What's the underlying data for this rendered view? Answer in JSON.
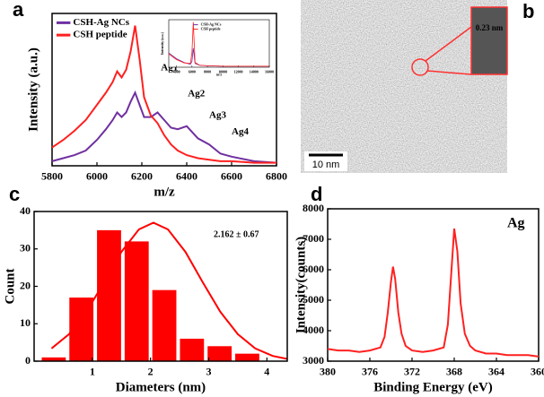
{
  "chart_data": [
    {
      "type": "line",
      "label": "a",
      "xlabel": "m/z",
      "ylabel": "Intensity (a.u.)",
      "x": [
        5800,
        5850,
        5900,
        5950,
        6000,
        6040,
        6070,
        6090,
        6110,
        6130,
        6150,
        6170,
        6190,
        6210,
        6240,
        6270,
        6300,
        6330,
        6360,
        6400,
        6450,
        6500,
        6550,
        6600,
        6700,
        6800
      ],
      "series": [
        {
          "name": "CSH-Ag NCs",
          "color": "#7030a0",
          "values": [
            3,
            5,
            7,
            10,
            17,
            24,
            30,
            35,
            32,
            35,
            42,
            48,
            40,
            32,
            32,
            35,
            30,
            25,
            24,
            26,
            18,
            14,
            8,
            6,
            3,
            2
          ]
        },
        {
          "name": "CSH peptide",
          "color": "#ff2020",
          "values": [
            12,
            17,
            23,
            30,
            40,
            48,
            55,
            62,
            58,
            63,
            75,
            92,
            70,
            45,
            33,
            28,
            20,
            14,
            10,
            7,
            5,
            4,
            3,
            3,
            2,
            2
          ]
        }
      ],
      "xlim": [
        5800,
        6800
      ],
      "xticks": [
        5800,
        6000,
        6200,
        6400,
        6600,
        6800
      ],
      "ylim": [
        0,
        100
      ],
      "annotations": [
        "Ag1",
        "Ag2",
        "Ag3",
        "Ag4"
      ],
      "inset": {
        "type": "line",
        "xlabel": "m/z",
        "ylabel": "Intensity (a.u.)",
        "x": [
          3000,
          4000,
          5000,
          5800,
          6000,
          6170,
          6400,
          7000,
          8000,
          10000,
          12000,
          14000,
          16000
        ],
        "series": [
          {
            "name": "CSH-Ag NCs",
            "color": "#7030a0",
            "values": [
              30,
              18,
              10,
              6,
              12,
              40,
              8,
              4,
              3,
              2,
              2,
              2,
              2
            ]
          },
          {
            "name": "CSH peptide",
            "color": "#ff2020",
            "values": [
              28,
              16,
              9,
              8,
              30,
              95,
              10,
              4,
              3,
              2,
              2,
              2,
              2
            ]
          }
        ],
        "xlim": [
          3000,
          16000
        ],
        "xticks": [
          4000,
          6000,
          8000,
          10000,
          12000,
          14000,
          16000
        ],
        "ylim": [
          0,
          100
        ]
      }
    },
    {
      "type": "image",
      "label": "b",
      "scale_bar": "10 nm",
      "annotation": "0.23 nm"
    },
    {
      "type": "histogram",
      "label": "c",
      "xlabel": "Diameters (nm)",
      "ylabel": "Count",
      "bins": [
        0.1,
        0.575,
        1.05,
        1.525,
        2.0,
        2.475,
        2.95,
        3.425,
        3.9
      ],
      "values": [
        1,
        17,
        35,
        32,
        19,
        6,
        4,
        2
      ],
      "color": "#ff0000",
      "fit": {
        "x": [
          0.3,
          0.6,
          0.9,
          1.2,
          1.5,
          1.8,
          2.05,
          2.3,
          2.6,
          2.9,
          3.2,
          3.5,
          3.8,
          4.1,
          4.35
        ],
        "values": [
          3.4,
          7.2,
          13.2,
          21.0,
          29.2,
          35.2,
          37,
          35.2,
          29.2,
          21.0,
          13.2,
          7.2,
          3.4,
          1.4,
          0.6
        ],
        "color": "#ff0000"
      },
      "annotation": "2.162 ± 0.67",
      "xlim": [
        0,
        4.35
      ],
      "xticks": [
        1,
        2,
        3,
        4
      ],
      "ylim": [
        0,
        40
      ],
      "yticks": [
        0,
        10,
        20,
        30,
        40
      ]
    },
    {
      "type": "line",
      "label": "d",
      "xlabel": "Binding Energy (eV)",
      "ylabel": "Intensity(counts)",
      "annotation": "Ag",
      "x": [
        380,
        379,
        378,
        377,
        376,
        375,
        374.6,
        374.3,
        374,
        373.8,
        373.6,
        373.3,
        373,
        372.6,
        372,
        371,
        370,
        369,
        368.6,
        368.3,
        368,
        367.7,
        367.4,
        367,
        366.5,
        366,
        365,
        364,
        363,
        362,
        361,
        360
      ],
      "series": [
        {
          "color": "#ff2020",
          "values": [
            3400,
            3350,
            3350,
            3300,
            3350,
            3450,
            3800,
            4600,
            5600,
            6100,
            5700,
            4600,
            3900,
            3500,
            3350,
            3300,
            3350,
            3450,
            4200,
            5800,
            7350,
            6600,
            4900,
            3900,
            3500,
            3350,
            3250,
            3250,
            3200,
            3200,
            3200,
            3150
          ]
        }
      ],
      "xlim": [
        380,
        360
      ],
      "xticks": [
        380,
        376,
        372,
        368,
        364,
        360
      ],
      "ylim": [
        3000,
        8000
      ],
      "yticks": [
        3000,
        4000,
        5000,
        6000,
        7000,
        8000
      ]
    }
  ]
}
